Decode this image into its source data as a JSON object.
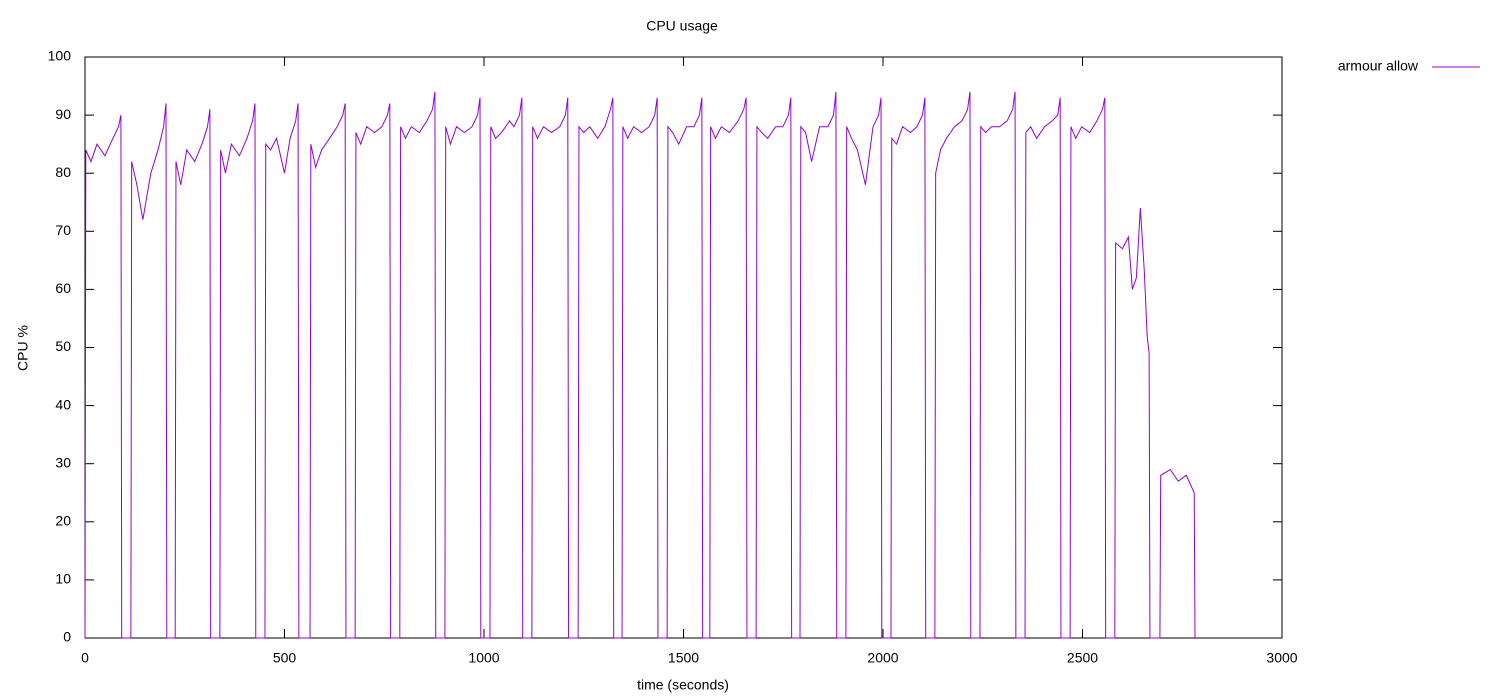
{
  "chart_data": {
    "type": "line",
    "title": "CPU usage",
    "xlabel": "time (seconds)",
    "ylabel": "CPU %",
    "xlim": [
      0,
      3000
    ],
    "xticks": [
      0,
      500,
      1000,
      1500,
      2000,
      2500,
      3000
    ],
    "ylim": [
      0,
      100
    ],
    "yticks": [
      0,
      10,
      20,
      30,
      40,
      50,
      60,
      70,
      80,
      90,
      100
    ],
    "grid": false,
    "legend": "top-right-outside",
    "x": [
      0,
      2,
      15,
      30,
      50,
      70,
      84,
      90,
      92,
      115,
      117,
      130,
      145,
      165,
      183,
      197,
      203,
      205,
      226,
      228,
      240,
      255,
      275,
      293,
      307,
      313,
      315,
      338,
      340,
      352,
      367,
      387,
      406,
      420,
      426,
      428,
      451,
      453,
      465,
      480,
      500,
      514,
      528,
      534,
      536,
      564,
      566,
      578,
      593,
      613,
      632,
      646,
      652,
      654,
      677,
      679,
      691,
      706,
      726,
      744,
      758,
      764,
      766,
      789,
      791,
      803,
      818,
      838,
      857,
      871,
      877,
      879,
      902,
      904,
      916,
      931,
      951,
      970,
      984,
      990,
      992,
      1015,
      1017,
      1029,
      1044,
      1064,
      1075,
      1089,
      1095,
      1097,
      1120,
      1122,
      1134,
      1149,
      1169,
      1190,
      1204,
      1210,
      1212,
      1236,
      1238,
      1250,
      1265,
      1285,
      1303,
      1317,
      1323,
      1325,
      1346,
      1348,
      1360,
      1375,
      1395,
      1414,
      1428,
      1434,
      1436,
      1459,
      1461,
      1473,
      1488,
      1508,
      1526,
      1540,
      1546,
      1548,
      1566,
      1568,
      1580,
      1595,
      1615,
      1637,
      1651,
      1657,
      1659,
      1682,
      1684,
      1696,
      1711,
      1731,
      1749,
      1763,
      1769,
      1771,
      1792,
      1794,
      1806,
      1821,
      1841,
      1862,
      1876,
      1882,
      1884,
      1907,
      1909,
      1921,
      1936,
      1956,
      1975,
      1989,
      1995,
      1997,
      2020,
      2022,
      2034,
      2049,
      2069,
      2085,
      2099,
      2105,
      2107,
      2130,
      2132,
      2144,
      2159,
      2179,
      2198,
      2212,
      2218,
      2220,
      2243,
      2245,
      2257,
      2272,
      2292,
      2311,
      2325,
      2331,
      2333,
      2356,
      2358,
      2370,
      2385,
      2405,
      2424,
      2438,
      2444,
      2446,
      2469,
      2471,
      2483,
      2498,
      2518,
      2536,
      2550,
      2556,
      2558,
      2581,
      2583,
      2600,
      2615,
      2625,
      2635,
      2645,
      2655,
      2662,
      2667,
      2669,
      2694,
      2696,
      2720,
      2740,
      2760,
      2780,
      2782
    ],
    "series": [
      {
        "name": "armour allow",
        "color": "#9400d3",
        "values": [
          0,
          84,
          82,
          85,
          83,
          86,
          88,
          90,
          0,
          0,
          82,
          78,
          72,
          80,
          84,
          88,
          92,
          0,
          0,
          82,
          78,
          84,
          82,
          85,
          88,
          91,
          0,
          0,
          84,
          80,
          85,
          83,
          86,
          89,
          92,
          0,
          0,
          85,
          84,
          86,
          80,
          86,
          89,
          92,
          0,
          0,
          85,
          81,
          84,
          86,
          88,
          90,
          92,
          0,
          0,
          87,
          85,
          88,
          87,
          88,
          90,
          92,
          0,
          0,
          88,
          86,
          88,
          87,
          89,
          91,
          94,
          0,
          0,
          88,
          85,
          88,
          87,
          88,
          90,
          93,
          0,
          0,
          88,
          86,
          87,
          89,
          88,
          90,
          93,
          0,
          0,
          88,
          86,
          88,
          87,
          88,
          90,
          93,
          0,
          0,
          88,
          87,
          88,
          86,
          88,
          91,
          93,
          0,
          0,
          88,
          86,
          88,
          87,
          88,
          90,
          93,
          0,
          0,
          88,
          87,
          85,
          88,
          88,
          90,
          93,
          0,
          0,
          88,
          86,
          88,
          87,
          89,
          91,
          93,
          0,
          0,
          88,
          87,
          86,
          88,
          88,
          90,
          93,
          0,
          0,
          88,
          87,
          82,
          88,
          88,
          90,
          94,
          0,
          0,
          88,
          86,
          84,
          78,
          88,
          90,
          93,
          0,
          0,
          86,
          85,
          88,
          87,
          88,
          90,
          93,
          0,
          0,
          80,
          84,
          86,
          88,
          89,
          91,
          94,
          0,
          0,
          88,
          87,
          88,
          88,
          89,
          91,
          94,
          0,
          0,
          87,
          88,
          86,
          88,
          89,
          90,
          93,
          0,
          0,
          88,
          86,
          88,
          87,
          89,
          91,
          93,
          0,
          0,
          68,
          67,
          69,
          60,
          62,
          74,
          63,
          52,
          49,
          0,
          0,
          28,
          29,
          27,
          28,
          25,
          0
        ]
      }
    ]
  }
}
